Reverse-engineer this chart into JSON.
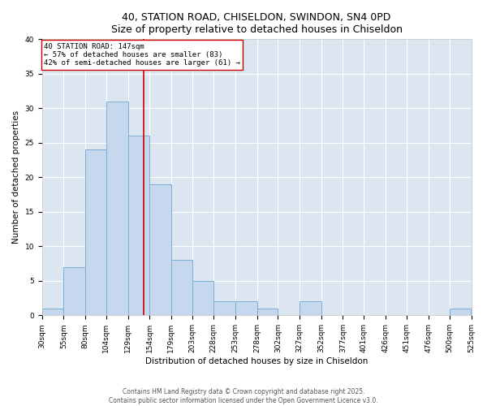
{
  "title_line1": "40, STATION ROAD, CHISELDON, SWINDON, SN4 0PD",
  "title_line2": "Size of property relative to detached houses in Chiseldon",
  "xlabel": "Distribution of detached houses by size in Chiseldon",
  "ylabel": "Number of detached properties",
  "bar_edges": [
    30,
    55,
    80,
    104,
    129,
    154,
    179,
    203,
    228,
    253,
    278,
    302,
    327,
    352,
    377,
    401,
    426,
    451,
    476,
    500,
    525
  ],
  "bar_heights": [
    1,
    7,
    24,
    31,
    26,
    19,
    8,
    5,
    2,
    2,
    1,
    0,
    2,
    0,
    0,
    0,
    0,
    0,
    0,
    1
  ],
  "bar_color": "#c5d8ed",
  "bar_edge_color": "#7bafd4",
  "background_color": "#ffffff",
  "plot_bg_color": "#dce6f1",
  "grid_color": "#ffffff",
  "vline_x": 147,
  "vline_color": "#cc0000",
  "annotation_text": "40 STATION ROAD: 147sqm\n← 57% of detached houses are smaller (83)\n42% of semi-detached houses are larger (61) →",
  "annotation_box_color": "#ffffff",
  "annotation_box_edge_color": "#cc0000",
  "ylim": [
    0,
    40
  ],
  "yticks": [
    0,
    5,
    10,
    15,
    20,
    25,
    30,
    35,
    40
  ],
  "footer_line1": "Contains HM Land Registry data © Crown copyright and database right 2025.",
  "footer_line2": "Contains public sector information licensed under the Open Government Licence v3.0.",
  "tick_labels": [
    "30sqm",
    "55sqm",
    "80sqm",
    "104sqm",
    "129sqm",
    "154sqm",
    "179sqm",
    "203sqm",
    "228sqm",
    "253sqm",
    "278sqm",
    "302sqm",
    "327sqm",
    "352sqm",
    "377sqm",
    "401sqm",
    "426sqm",
    "451sqm",
    "476sqm",
    "500sqm",
    "525sqm"
  ],
  "title_fontsize": 9,
  "axis_label_fontsize": 7.5,
  "tick_fontsize": 6.5,
  "annotation_fontsize": 6.5,
  "footer_fontsize": 5.5
}
